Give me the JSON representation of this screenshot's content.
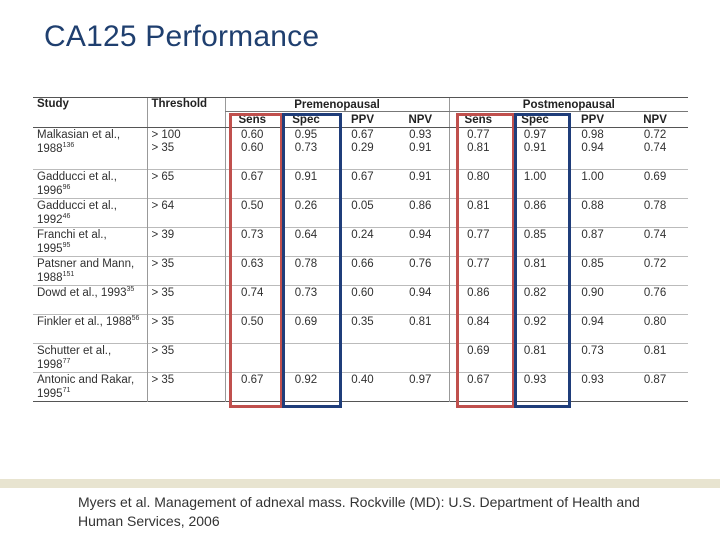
{
  "title": "CA125 Performance",
  "table": {
    "headers": {
      "study": "Study",
      "threshold": "Threshold",
      "pre_group": "Premenopausal",
      "post_group": "Postmenopausal",
      "sub": [
        "Sens",
        "Spec",
        "PPV",
        "NPV",
        "Sens",
        "Spec",
        "PPV",
        "NPV"
      ]
    },
    "rows": [
      {
        "study": "Malkasian et al., 1988",
        "ref": "136",
        "thresholds": [
          "> 100",
          "> 35"
        ],
        "pre": [
          [
            "0.60",
            "0.95",
            "0.67",
            "0.93"
          ],
          [
            "0.60",
            "0.73",
            "0.29",
            "0.91"
          ]
        ],
        "post": [
          [
            "0.77",
            "0.97",
            "0.98",
            "0.72"
          ],
          [
            "0.81",
            "0.91",
            "0.94",
            "0.74"
          ]
        ]
      },
      {
        "study": "Gadducci et al., 1996",
        "ref": "96",
        "thresholds": [
          "> 65"
        ],
        "pre": [
          [
            "0.67",
            "0.91",
            "0.67",
            "0.91"
          ]
        ],
        "post": [
          [
            "0.80",
            "1.00",
            "1.00",
            "0.69"
          ]
        ]
      },
      {
        "study": "Gadducci et al., 1992",
        "ref": "46",
        "thresholds": [
          "> 64"
        ],
        "pre": [
          [
            "0.50",
            "0.26",
            "0.05",
            "0.86"
          ]
        ],
        "post": [
          [
            "0.81",
            "0.86",
            "0.88",
            "0.78"
          ]
        ]
      },
      {
        "study": "Franchi et al., 1995",
        "ref": "95",
        "thresholds": [
          "> 39"
        ],
        "pre": [
          [
            "0.73",
            "0.64",
            "0.24",
            "0.94"
          ]
        ],
        "post": [
          [
            "0.77",
            "0.85",
            "0.87",
            "0.74"
          ]
        ]
      },
      {
        "study": "Patsner and Mann, 1988",
        "ref": "151",
        "thresholds": [
          "> 35"
        ],
        "pre": [
          [
            "0.63",
            "0.78",
            "0.66",
            "0.76"
          ]
        ],
        "post": [
          [
            "0.77",
            "0.81",
            "0.85",
            "0.72"
          ]
        ]
      },
      {
        "study": "Dowd et al., 1993",
        "ref": "35",
        "thresholds": [
          "> 35"
        ],
        "pre": [
          [
            "0.74",
            "0.73",
            "0.60",
            "0.94"
          ]
        ],
        "post": [
          [
            "0.86",
            "0.82",
            "0.90",
            "0.76"
          ]
        ]
      },
      {
        "study": "Finkler et al., 1988",
        "ref": "56",
        "thresholds": [
          "> 35"
        ],
        "pre": [
          [
            "0.50",
            "0.69",
            "0.35",
            "0.81"
          ]
        ],
        "post": [
          [
            "0.84",
            "0.92",
            "0.94",
            "0.80"
          ]
        ]
      },
      {
        "study": "Schutter et al., 1998",
        "ref": "77",
        "thresholds": [
          "> 35"
        ],
        "pre": [
          [
            "",
            "",
            "",
            ""
          ]
        ],
        "post": [
          [
            "0.69",
            "0.81",
            "0.73",
            "0.81"
          ]
        ]
      },
      {
        "study": "Antonic and Rakar, 1995",
        "ref": "71",
        "thresholds": [
          "> 35"
        ],
        "pre": [
          [
            "0.67",
            "0.92",
            "0.40",
            "0.97"
          ]
        ],
        "post": [
          [
            "0.67",
            "0.93",
            "0.93",
            "0.87"
          ]
        ]
      }
    ]
  },
  "highlight_colors": {
    "sens": "#c0504d",
    "spec": "#1f3d7a"
  },
  "citation": "Myers et al. Management of adnexal mass. Rockville (MD): U.S. Department of Health and Human Services, 2006"
}
